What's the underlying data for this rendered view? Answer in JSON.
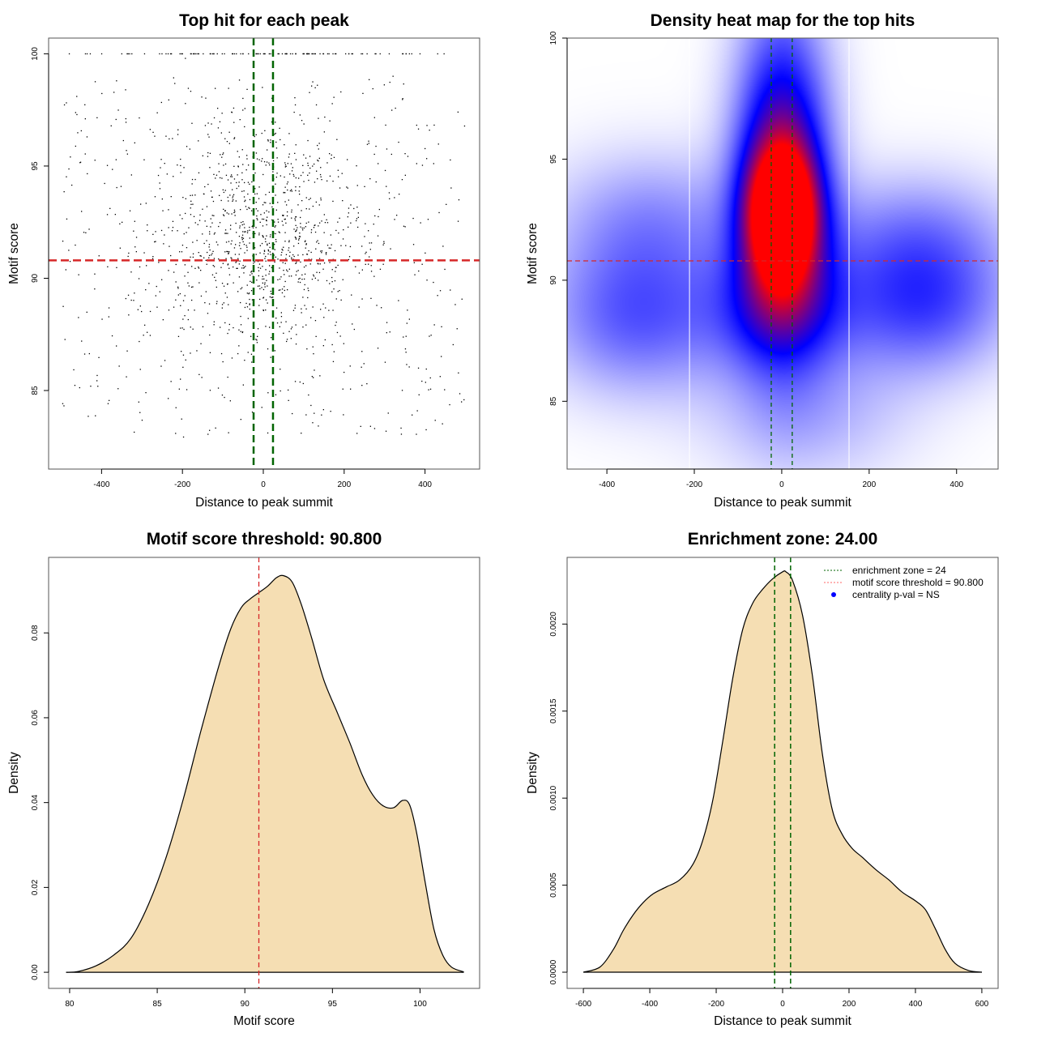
{
  "chart_data": [
    {
      "id": "scatter",
      "type": "scatter",
      "title": "Top hit for each peak",
      "xlabel": "Distance to peak summit",
      "ylabel": "Motif score",
      "xlim": [
        -531,
        535
      ],
      "ylim": [
        81.5,
        100.7
      ],
      "xticks": [
        -400,
        -200,
        0,
        200,
        400
      ],
      "xtick_labels": [
        "-400",
        "-200",
        "0",
        "200",
        "400"
      ],
      "yticks": [
        85,
        90,
        95,
        100
      ],
      "ytick_labels": [
        "85",
        "90",
        "95",
        "100"
      ],
      "grid": false,
      "point_color": "#000000",
      "point_count_approx": 1400,
      "point_distribution": {
        "x_center": 0,
        "x_spread_sd": 170,
        "x_range": [
          -500,
          500
        ],
        "y_range": [
          82,
          100
        ],
        "y_mode": 92,
        "pileup_at_y": 100,
        "description": "Dense cloud centered at distance 0 and score ~92; row of points piled at score 100; sparse points across full width"
      },
      "annotations": {
        "vlines": [
          {
            "x": -24,
            "color": "#006400",
            "style": "dashed"
          },
          {
            "x": 24,
            "color": "#006400",
            "style": "dashed"
          }
        ],
        "hlines": [
          {
            "y": 90.8,
            "color": "#d62728",
            "style": "dashed"
          }
        ]
      }
    },
    {
      "id": "heatmap",
      "type": "heatmap",
      "title": "Density heat map for the top hits",
      "xlabel": "Distance to peak summit",
      "ylabel": "Motif score",
      "xlim": [
        -491,
        495
      ],
      "ylim": [
        82.2,
        100
      ],
      "xticks": [
        -400,
        -200,
        0,
        200,
        400
      ],
      "xtick_labels": [
        "-400",
        "-200",
        "0",
        "200",
        "400"
      ],
      "yticks": [
        85,
        90,
        95,
        100
      ],
      "ytick_labels": [
        "85",
        "90",
        "95",
        "100"
      ],
      "colorscale": [
        "#ffffff",
        "#0000ff",
        "#ff0000"
      ],
      "peak": {
        "x": 0,
        "y": 92.7
      },
      "blobs": [
        {
          "x": 0,
          "y": 92.7,
          "sx": 55,
          "sy": 1.9,
          "w": 1.0
        },
        {
          "x": 0,
          "y": 94.5,
          "sx": 75,
          "sy": 4.5,
          "w": 0.7
        },
        {
          "x": 0,
          "y": 88.8,
          "sx": 110,
          "sy": 1.8,
          "w": 0.35
        },
        {
          "x": -330,
          "y": 88.5,
          "sx": 150,
          "sy": 2.2,
          "w": 0.32
        },
        {
          "x": 320,
          "y": 89.0,
          "sx": 140,
          "sy": 2.0,
          "w": 0.36
        },
        {
          "x": 300,
          "y": 92.0,
          "sx": 160,
          "sy": 1.8,
          "w": 0.2
        },
        {
          "x": -300,
          "y": 92.5,
          "sx": 160,
          "sy": 2.0,
          "w": 0.2
        },
        {
          "x": 60,
          "y": 84.5,
          "sx": 160,
          "sy": 2.0,
          "w": 0.15
        }
      ],
      "white_vlines": [
        -211,
        154
      ],
      "annotations": {
        "vlines": [
          {
            "x": -24,
            "color": "#006400",
            "style": "dashed"
          },
          {
            "x": 24,
            "color": "#006400",
            "style": "dashed"
          }
        ],
        "hlines": [
          {
            "y": 90.8,
            "color": "#d62728",
            "style": "dashed"
          }
        ]
      }
    },
    {
      "id": "score-density",
      "type": "area",
      "title": "Motif score threshold: 90.800",
      "xlabel": "Motif score",
      "ylabel": "Density",
      "xlim": [
        78.8,
        103.4
      ],
      "ylim": [
        -0.0038,
        0.0978
      ],
      "xticks": [
        80,
        85,
        90,
        95,
        100
      ],
      "xtick_labels": [
        "80",
        "85",
        "90",
        "95",
        "100"
      ],
      "yticks": [
        0,
        0.02,
        0.04,
        0.06,
        0.08
      ],
      "ytick_labels": [
        "0.00",
        "0.02",
        "0.04",
        "0.06",
        "0.08"
      ],
      "fill": "#f5deb3",
      "x": [
        79.8,
        80.5,
        81.5,
        82.5,
        83.5,
        84.5,
        85.5,
        86.5,
        87.5,
        88.5,
        89.2,
        89.8,
        90.3,
        90.8,
        91.3,
        91.8,
        92.2,
        92.7,
        93.2,
        93.8,
        94.5,
        95.3,
        96.0,
        96.7,
        97.3,
        97.9,
        98.5,
        99.0,
        99.4,
        99.8,
        100.3,
        100.8,
        101.3,
        101.8,
        102.5
      ],
      "y": [
        0.0,
        0.0002,
        0.0015,
        0.004,
        0.008,
        0.016,
        0.027,
        0.041,
        0.057,
        0.072,
        0.081,
        0.086,
        0.088,
        0.0895,
        0.091,
        0.093,
        0.0935,
        0.092,
        0.087,
        0.079,
        0.069,
        0.061,
        0.054,
        0.0465,
        0.0418,
        0.0392,
        0.0388,
        0.0405,
        0.0395,
        0.033,
        0.021,
        0.01,
        0.004,
        0.0012,
        0.0001
      ],
      "annotations": {
        "vlines": [
          {
            "x": 90.8,
            "color": "#d62728",
            "style": "dashed"
          }
        ]
      }
    },
    {
      "id": "distance-density",
      "type": "area",
      "title": "Enrichment zone: 24.00",
      "xlabel": "Distance to peak summit",
      "ylabel": "Density",
      "xlim": [
        -649,
        649
      ],
      "ylim": [
        -9.3e-05,
        0.002383
      ],
      "xticks": [
        -600,
        -400,
        -200,
        0,
        200,
        400,
        600
      ],
      "xtick_labels": [
        "-600",
        "-400",
        "-200",
        "0",
        "200",
        "400",
        "600"
      ],
      "yticks": [
        0,
        0.0005,
        0.001,
        0.0015,
        0.002
      ],
      "ytick_labels": [
        "0.0000",
        "0.0005",
        "0.0010",
        "0.0015",
        "0.0020"
      ],
      "fill": "#f5deb3",
      "x": [
        -600,
        -550,
        -510,
        -480,
        -450,
        -420,
        -390,
        -350,
        -310,
        -270,
        -240,
        -210,
        -180,
        -150,
        -120,
        -90,
        -60,
        -30,
        0,
        10,
        30,
        60,
        90,
        120,
        150,
        180,
        210,
        240,
        280,
        320,
        360,
        400,
        430,
        460,
        490,
        520,
        560,
        600
      ],
      "y": [
        0.0,
        3e-05,
        0.00013,
        0.00024,
        0.00033,
        0.0004,
        0.00045,
        0.00049,
        0.00053,
        0.00062,
        0.00076,
        0.00099,
        0.00133,
        0.00169,
        0.00197,
        0.00212,
        0.0022,
        0.00226,
        0.0023,
        0.0023,
        0.00225,
        0.00205,
        0.0017,
        0.00125,
        0.00093,
        0.00079,
        0.00071,
        0.00066,
        0.00059,
        0.00053,
        0.00046,
        0.00041,
        0.00036,
        0.00025,
        0.00013,
        5e-05,
        1e-05,
        0.0
      ],
      "annotations": {
        "vlines": [
          {
            "x": -24,
            "color": "#006400",
            "style": "dashed"
          },
          {
            "x": 24,
            "color": "#006400",
            "style": "dashed"
          }
        ]
      },
      "legend": {
        "placement": "top-right",
        "entries": [
          {
            "label": "enrichment zone = 24",
            "color": "#006400",
            "symbol": "dotted-line"
          },
          {
            "label": "motif score threshold = 90.800",
            "color": "#ff6666",
            "symbol": "dotted-line"
          },
          {
            "label": "centrality p-val = NS",
            "color": "#0000ff",
            "symbol": "dot"
          }
        ]
      }
    }
  ]
}
